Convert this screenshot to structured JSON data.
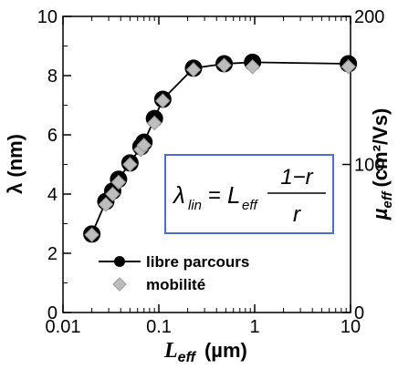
{
  "chart_data": {
    "type": "scatter",
    "title": "",
    "x_axis": {
      "label_main": "L",
      "label_sub": "eff",
      "label_unit": "(µm)",
      "scale": "log",
      "range": [
        0.01,
        10
      ],
      "tick_values": [
        0.01,
        0.1,
        1,
        10
      ],
      "tick_labels": [
        "0.01",
        "0.1",
        "1",
        "10"
      ]
    },
    "y_left_axis": {
      "label": "λ (nm)",
      "range": [
        0,
        10
      ],
      "tick_values": [
        0,
        2,
        4,
        6,
        8,
        10
      ],
      "tick_labels": [
        "0",
        "2",
        "4",
        "6",
        "8",
        "10"
      ]
    },
    "y_right_axis": {
      "label_main": "µ",
      "label_sub": "eff",
      "label_unit": "(cm²/Vs)",
      "range": [
        0,
        200
      ],
      "tick_values": [
        0,
        100,
        200
      ],
      "tick_labels": [
        "0",
        "100",
        "200"
      ]
    },
    "series": [
      {
        "name": "libre parcours",
        "axis": "left",
        "marker": "circle",
        "color": "#000000",
        "line": true,
        "points": [
          {
            "x": 0.02,
            "y": 2.65
          },
          {
            "x": 0.028,
            "y": 3.75
          },
          {
            "x": 0.033,
            "y": 4.1
          },
          {
            "x": 0.038,
            "y": 4.5
          },
          {
            "x": 0.05,
            "y": 5.05
          },
          {
            "x": 0.065,
            "y": 5.6
          },
          {
            "x": 0.07,
            "y": 5.75
          },
          {
            "x": 0.09,
            "y": 6.55
          },
          {
            "x": 0.11,
            "y": 7.2
          },
          {
            "x": 0.23,
            "y": 8.25
          },
          {
            "x": 0.48,
            "y": 8.4
          },
          {
            "x": 0.95,
            "y": 8.45
          },
          {
            "x": 9.5,
            "y": 8.4
          }
        ]
      },
      {
        "name": "mobilité",
        "axis": "right",
        "marker": "diamond",
        "color": "#b4b4b4",
        "line": false,
        "points": [
          {
            "x": 0.02,
            "y": 52.5
          },
          {
            "x": 0.028,
            "y": 73
          },
          {
            "x": 0.033,
            "y": 80
          },
          {
            "x": 0.038,
            "y": 88
          },
          {
            "x": 0.05,
            "y": 100
          },
          {
            "x": 0.065,
            "y": 110
          },
          {
            "x": 0.07,
            "y": 113
          },
          {
            "x": 0.09,
            "y": 128
          },
          {
            "x": 0.11,
            "y": 143
          },
          {
            "x": 0.23,
            "y": 164
          },
          {
            "x": 0.48,
            "y": 167
          },
          {
            "x": 0.95,
            "y": 166
          },
          {
            "x": 9.5,
            "y": 166
          }
        ]
      }
    ],
    "legend": {
      "placement": "bottom-left",
      "entries": [
        "libre parcours",
        "mobilité"
      ]
    },
    "annotation": {
      "lhs": "λ",
      "lhs_sub": "lin",
      "eq": "=",
      "rhs": "L",
      "rhs_sub": "eff",
      "numerator": "1−r",
      "denominator": "r",
      "box_color": "#4a6fd0"
    }
  }
}
